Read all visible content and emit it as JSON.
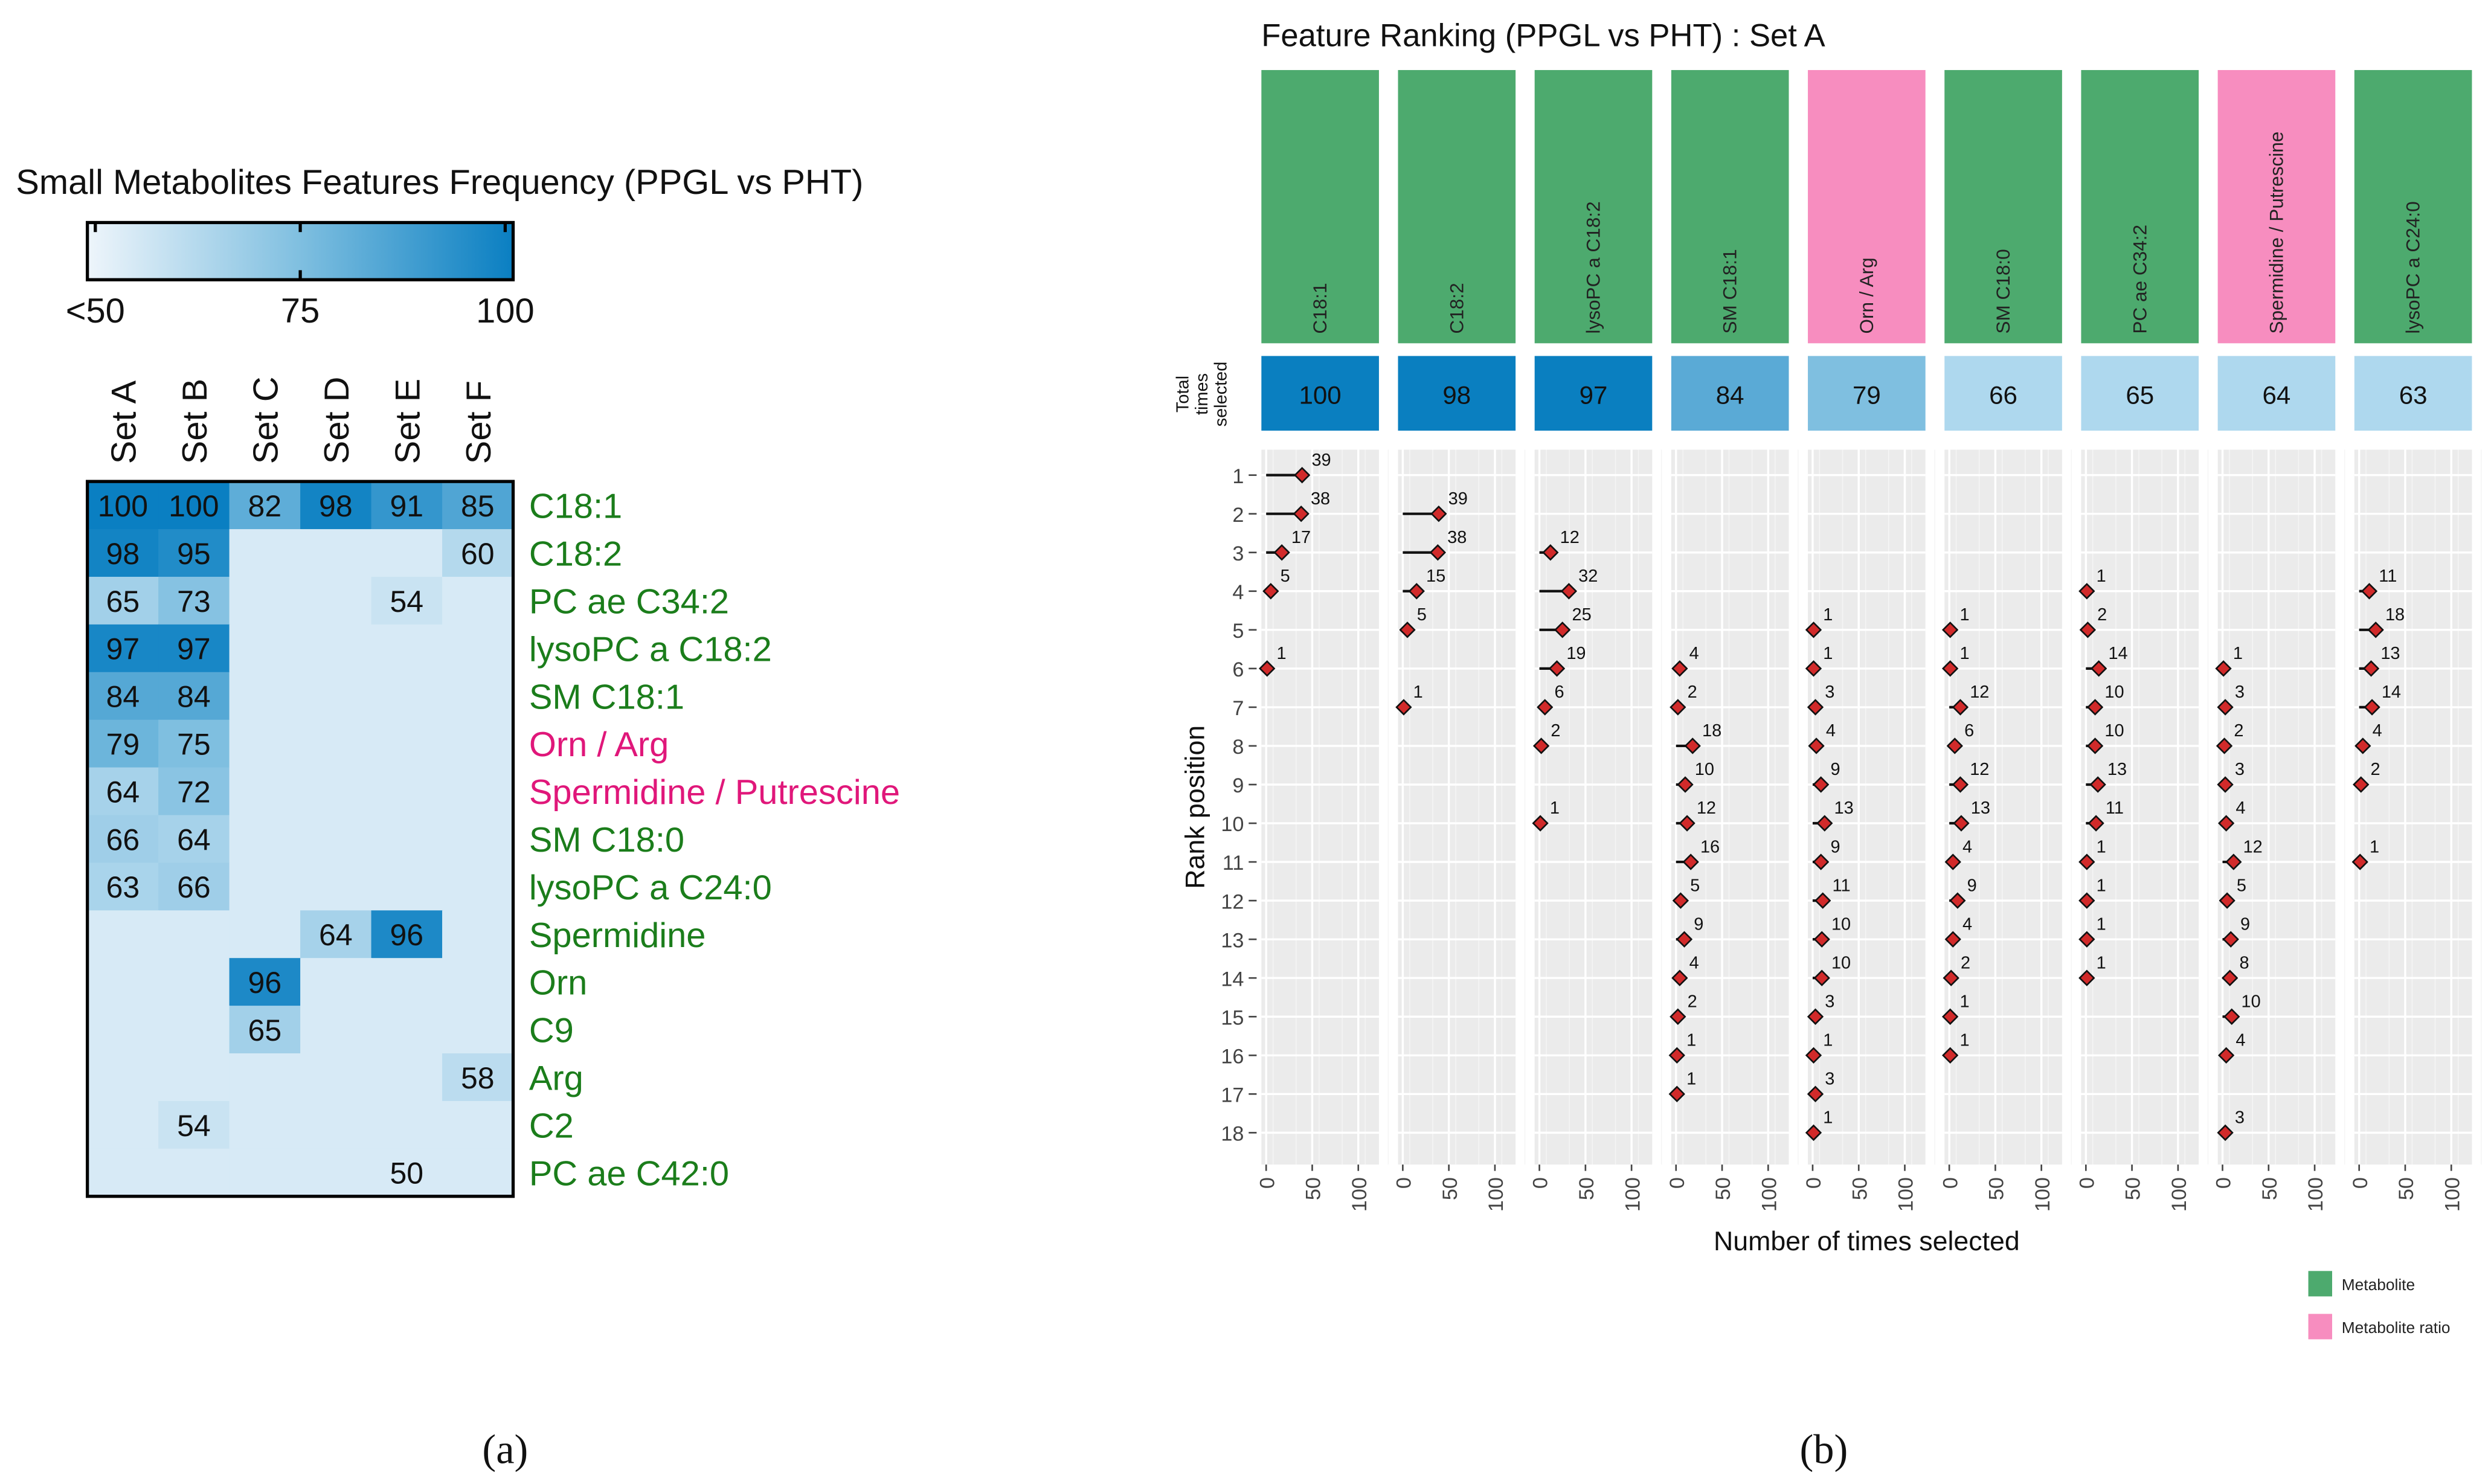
{
  "chart_data": [
    {
      "type": "heatmap",
      "panel_label": "(a)",
      "title": "Small Metabolites Features Frequency (PPGL vs PHT)",
      "colorbar": {
        "labels": [
          "<50",
          "75",
          "100"
        ],
        "range": [
          50,
          100
        ],
        "low_color": "#d7eaf6",
        "mid_color": "#7fbfe0",
        "high_color": "#0a7fc2"
      },
      "columns": [
        "Set A",
        "Set B",
        "Set C",
        "Set D",
        "Set E",
        "Set F"
      ],
      "rows": [
        {
          "label": "C18:1",
          "type": "metabolite",
          "values": [
            100,
            100,
            82,
            98,
            91,
            85
          ]
        },
        {
          "label": "C18:2",
          "type": "metabolite",
          "values": [
            98,
            95,
            null,
            null,
            null,
            60
          ]
        },
        {
          "label": "PC ae C34:2",
          "type": "metabolite",
          "values": [
            65,
            73,
            null,
            null,
            54,
            null
          ]
        },
        {
          "label": "lysoPC a C18:2",
          "type": "metabolite",
          "values": [
            97,
            97,
            null,
            null,
            null,
            null
          ]
        },
        {
          "label": "SM C18:1",
          "type": "metabolite",
          "values": [
            84,
            84,
            null,
            null,
            null,
            null
          ]
        },
        {
          "label": "Orn / Arg",
          "type": "ratio",
          "values": [
            79,
            75,
            null,
            null,
            null,
            null
          ]
        },
        {
          "label": "Spermidine / Putrescine",
          "type": "ratio",
          "values": [
            64,
            72,
            null,
            null,
            null,
            null
          ]
        },
        {
          "label": "SM C18:0",
          "type": "metabolite",
          "values": [
            66,
            64,
            null,
            null,
            null,
            null
          ]
        },
        {
          "label": "lysoPC a C24:0",
          "type": "metabolite",
          "values": [
            63,
            66,
            null,
            null,
            null,
            null
          ]
        },
        {
          "label": "Spermidine",
          "type": "metabolite",
          "values": [
            null,
            null,
            null,
            64,
            96,
            null
          ]
        },
        {
          "label": "Orn",
          "type": "metabolite",
          "values": [
            null,
            null,
            96,
            null,
            null,
            null
          ]
        },
        {
          "label": "C9",
          "type": "metabolite",
          "values": [
            null,
            null,
            65,
            null,
            null,
            null
          ]
        },
        {
          "label": "Arg",
          "type": "metabolite",
          "values": [
            null,
            null,
            null,
            null,
            null,
            58
          ]
        },
        {
          "label": "C2",
          "type": "metabolite",
          "values": [
            null,
            54,
            null,
            null,
            null,
            null
          ]
        },
        {
          "label": "PC ae C42:0",
          "type": "metabolite",
          "values": [
            null,
            null,
            null,
            null,
            50,
            null
          ]
        }
      ],
      "label_colors": {
        "metabolite": "#1b7d1b",
        "ratio": "#e0177a"
      }
    },
    {
      "type": "scatter",
      "panel_label": "(b)",
      "title": "Feature Ranking  (PPGL vs PHT) : Set A",
      "xlabel": "Number of times selected",
      "ylabel": "Rank position",
      "total_label": "Total times selected",
      "xticks": [
        "0",
        "50",
        "100"
      ],
      "xlim": [
        -5,
        122
      ],
      "ylim": [
        1,
        18
      ],
      "legend": {
        "position": "bottom-right",
        "items": [
          {
            "label": "Metabolite",
            "color": "#4daa6e"
          },
          {
            "label": "Metabolite ratio",
            "color": "#f78dbf"
          }
        ]
      },
      "facets": [
        {
          "name": "C18:1",
          "type": "metabolite",
          "total": 100,
          "points": [
            [
              1,
              39
            ],
            [
              2,
              38
            ],
            [
              3,
              17
            ],
            [
              4,
              5
            ],
            [
              6,
              1
            ]
          ]
        },
        {
          "name": "C18:2",
          "type": "metabolite",
          "total": 98,
          "points": [
            [
              2,
              39
            ],
            [
              3,
              38
            ],
            [
              4,
              15
            ],
            [
              5,
              5
            ],
            [
              7,
              1
            ]
          ]
        },
        {
          "name": "lysoPC a C18:2",
          "type": "metabolite",
          "total": 97,
          "points": [
            [
              3,
              12
            ],
            [
              4,
              32
            ],
            [
              5,
              25
            ],
            [
              6,
              19
            ],
            [
              7,
              6
            ],
            [
              8,
              2
            ],
            [
              10,
              1
            ]
          ]
        },
        {
          "name": "SM C18:1",
          "type": "metabolite",
          "total": 84,
          "points": [
            [
              6,
              4
            ],
            [
              7,
              2
            ],
            [
              8,
              18
            ],
            [
              9,
              10
            ],
            [
              10,
              12
            ],
            [
              11,
              16
            ],
            [
              12,
              5
            ],
            [
              13,
              9
            ],
            [
              14,
              4
            ],
            [
              15,
              2
            ],
            [
              16,
              1
            ],
            [
              17,
              1
            ]
          ]
        },
        {
          "name": "Orn / Arg",
          "type": "ratio",
          "total": 79,
          "points": [
            [
              5,
              1
            ],
            [
              6,
              1
            ],
            [
              7,
              3
            ],
            [
              8,
              4
            ],
            [
              9,
              9
            ],
            [
              10,
              13
            ],
            [
              11,
              9
            ],
            [
              12,
              11
            ],
            [
              13,
              10
            ],
            [
              14,
              10
            ],
            [
              15,
              3
            ],
            [
              16,
              1
            ],
            [
              17,
              3
            ],
            [
              18,
              1
            ]
          ]
        },
        {
          "name": "SM C18:0",
          "type": "metabolite",
          "total": 66,
          "points": [
            [
              5,
              1
            ],
            [
              6,
              1
            ],
            [
              7,
              12
            ],
            [
              8,
              6
            ],
            [
              9,
              12
            ],
            [
              10,
              13
            ],
            [
              11,
              4
            ],
            [
              12,
              9
            ],
            [
              13,
              4
            ],
            [
              14,
              2
            ],
            [
              15,
              1
            ],
            [
              16,
              1
            ]
          ]
        },
        {
          "name": "PC ae C34:2",
          "type": "metabolite",
          "total": 65,
          "points": [
            [
              4,
              1
            ],
            [
              5,
              2
            ],
            [
              6,
              14
            ],
            [
              7,
              10
            ],
            [
              8,
              10
            ],
            [
              9,
              13
            ],
            [
              10,
              11
            ],
            [
              11,
              1
            ],
            [
              12,
              1
            ],
            [
              13,
              1
            ],
            [
              14,
              1
            ]
          ]
        },
        {
          "name": "Spermidine / Putrescine",
          "type": "ratio",
          "total": 64,
          "points": [
            [
              6,
              1
            ],
            [
              7,
              3
            ],
            [
              8,
              2
            ],
            [
              9,
              3
            ],
            [
              10,
              4
            ],
            [
              11,
              12
            ],
            [
              12,
              5
            ],
            [
              13,
              9
            ],
            [
              14,
              8
            ],
            [
              15,
              10
            ],
            [
              16,
              4
            ],
            [
              18,
              3
            ]
          ]
        },
        {
          "name": "lysoPC a C24:0",
          "type": "metabolite",
          "total": 63,
          "points": [
            [
              4,
              11
            ],
            [
              5,
              18
            ],
            [
              6,
              13
            ],
            [
              7,
              14
            ],
            [
              8,
              4
            ],
            [
              9,
              2
            ],
            [
              11,
              1
            ]
          ]
        }
      ],
      "total_colors": {
        "high": "#0a7fc0",
        "mid": "#5aaad6",
        "mid2": "#7fbfe0",
        "low": "#aed8ee"
      },
      "point_color": "#d12a2a"
    }
  ]
}
